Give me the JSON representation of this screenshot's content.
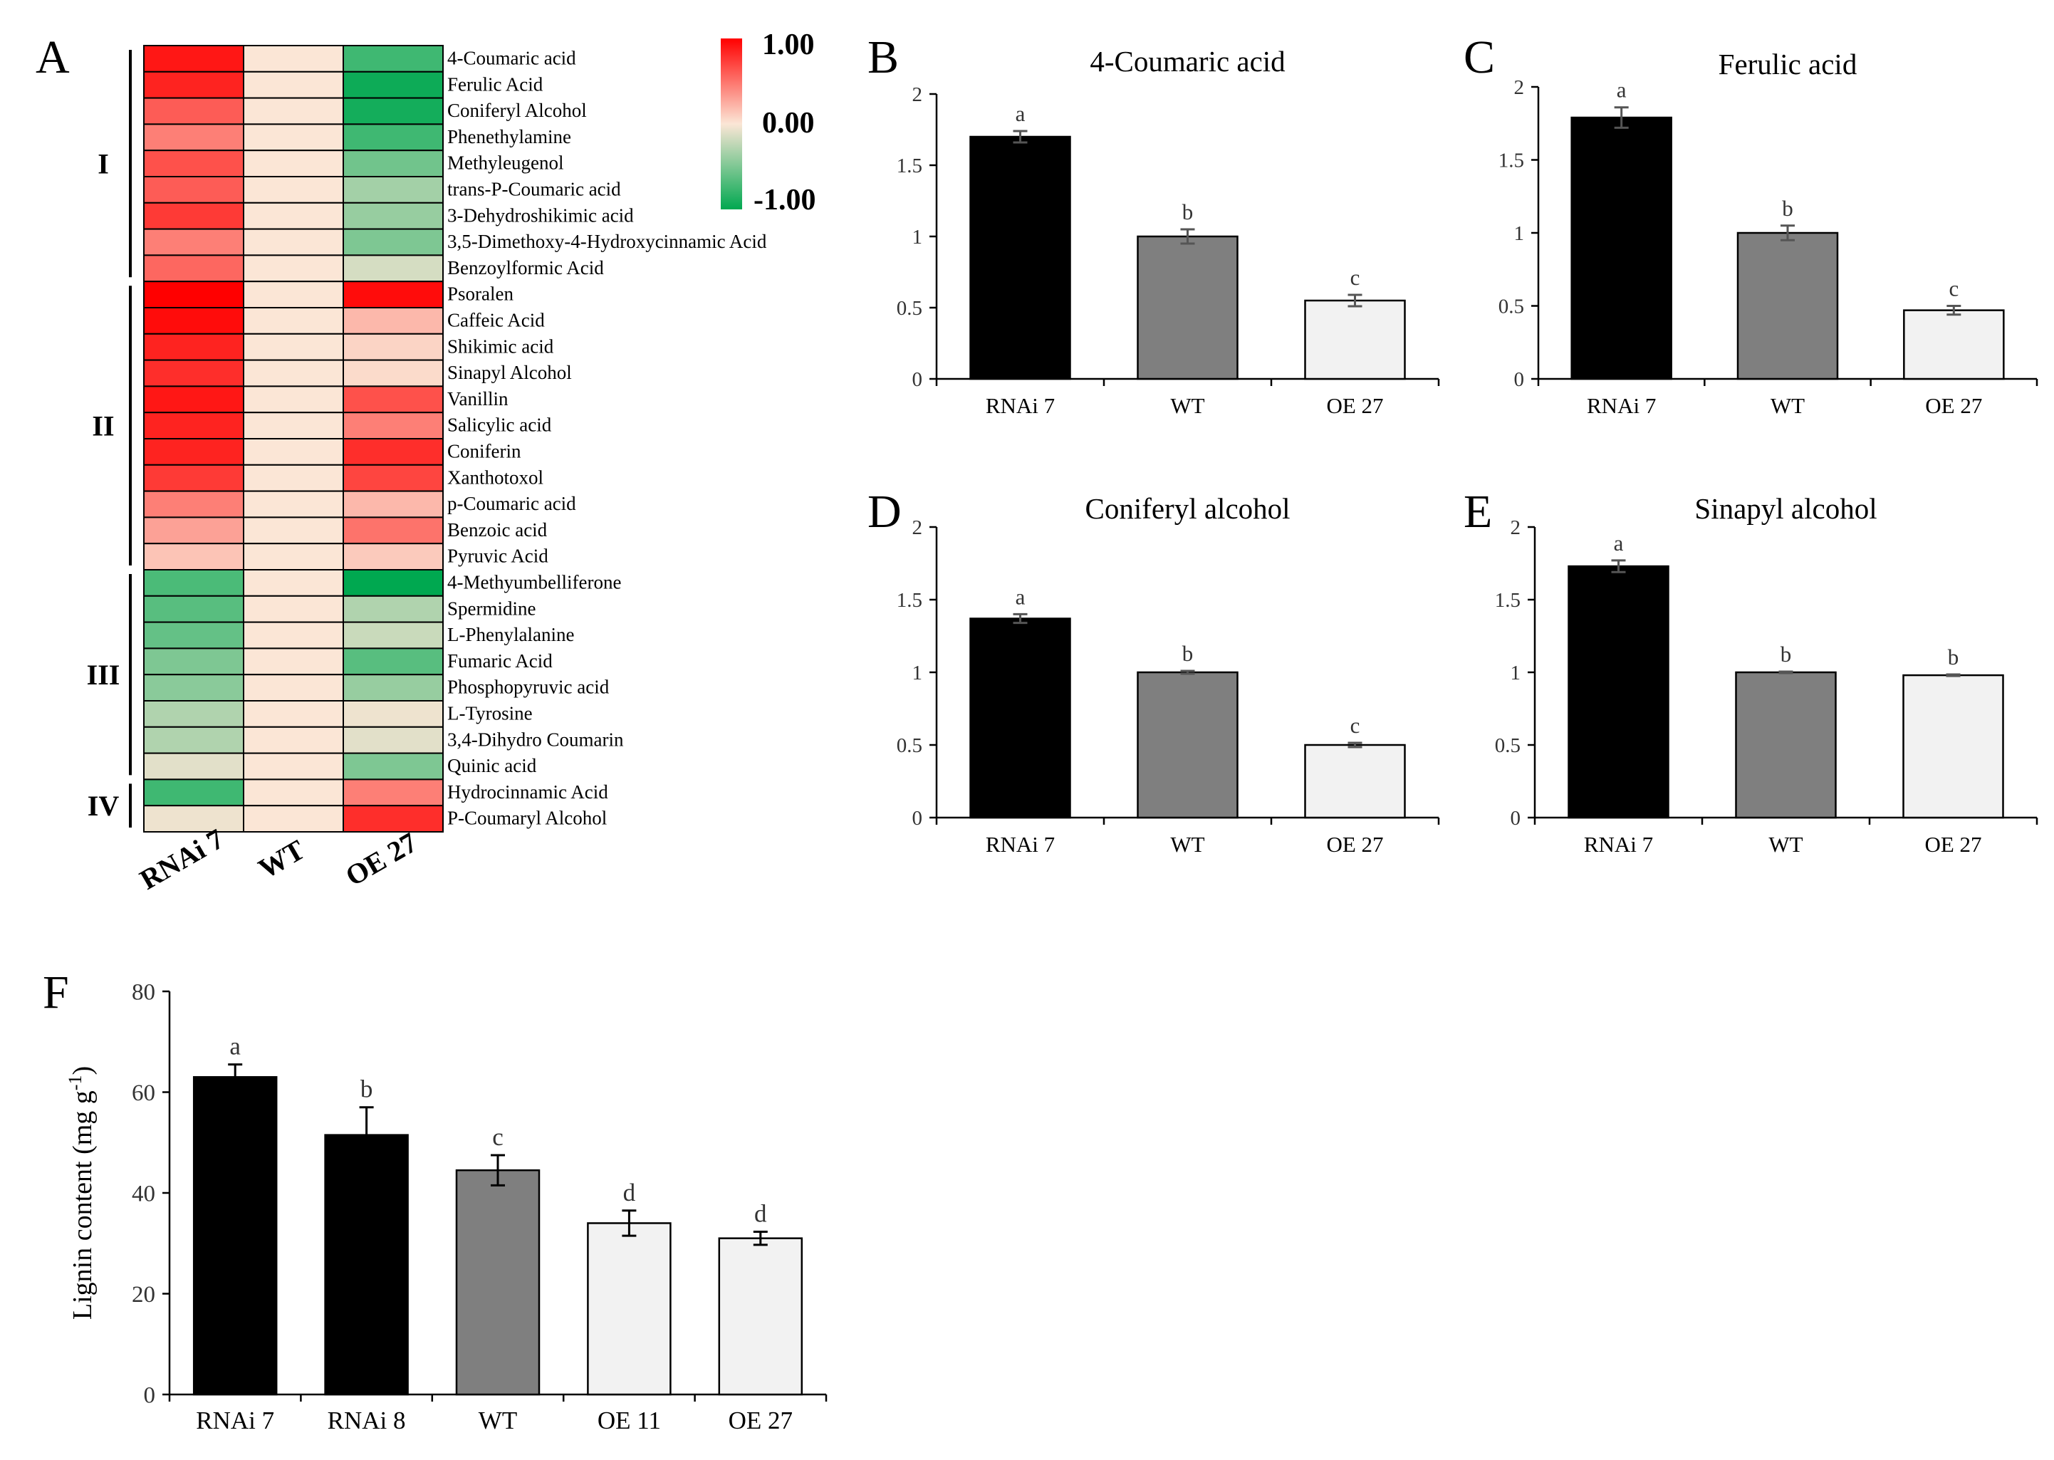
{
  "chart_data": [
    {
      "id": "A",
      "type": "heatmap",
      "panel_label": "A",
      "columns": [
        "RNAi 7",
        "WT",
        "OE 27"
      ],
      "color_scale": {
        "max": 1.0,
        "mid": 0.0,
        "min": -1.0,
        "max_label": "1.00",
        "mid_label": "0.00",
        "min_label": "-1.00",
        "max_color": "#ff0000",
        "mid_color": "#fbe6d6",
        "min_color": "#00a850"
      },
      "groups": [
        {
          "label": "I",
          "start": 0,
          "end": 8
        },
        {
          "label": "II",
          "start": 9,
          "end": 19
        },
        {
          "label": "III",
          "start": 20,
          "end": 27
        },
        {
          "label": "IV",
          "start": 28,
          "end": 29
        }
      ],
      "rows": [
        {
          "name": "4-Coumaric acid",
          "values": [
            0.9,
            0.0,
            -0.75
          ]
        },
        {
          "name": "Ferulic Acid",
          "values": [
            0.85,
            0.0,
            -0.95
          ]
        },
        {
          "name": "Coniferyl Alcohol",
          "values": [
            0.6,
            0.0,
            -0.92
          ]
        },
        {
          "name": "Phenethylamine",
          "values": [
            0.45,
            0.0,
            -0.75
          ]
        },
        {
          "name": "Methyleugenol",
          "values": [
            0.65,
            0.0,
            -0.55
          ]
        },
        {
          "name": "trans-P-Coumaric acid",
          "values": [
            0.6,
            0.0,
            -0.35
          ]
        },
        {
          "name": "3-Dehydroshikimic acid",
          "values": [
            0.75,
            0.0,
            -0.4
          ]
        },
        {
          "name": "3,5-Dimethoxy-4-Hydroxycinnamic Acid",
          "values": [
            0.45,
            0.0,
            -0.5
          ]
        },
        {
          "name": "Benzoylformic Acid",
          "values": [
            0.55,
            0.0,
            -0.15
          ]
        },
        {
          "name": "Psoralen",
          "values": [
            1.0,
            0.0,
            0.95
          ]
        },
        {
          "name": "Caffeic Acid",
          "values": [
            0.95,
            0.0,
            0.2
          ]
        },
        {
          "name": "Shikimic acid",
          "values": [
            0.85,
            0.0,
            0.08
          ]
        },
        {
          "name": "Sinapyl Alcohol",
          "values": [
            0.8,
            0.0,
            0.05
          ]
        },
        {
          "name": "Vanillin",
          "values": [
            0.9,
            0.0,
            0.65
          ]
        },
        {
          "name": "Salicylic acid",
          "values": [
            0.85,
            0.0,
            0.45
          ]
        },
        {
          "name": "Coniferin",
          "values": [
            0.85,
            0.0,
            0.8
          ]
        },
        {
          "name": "Xanthotoxol",
          "values": [
            0.75,
            0.0,
            0.7
          ]
        },
        {
          "name": "p-Coumaric acid",
          "values": [
            0.45,
            0.0,
            0.2
          ]
        },
        {
          "name": "Benzoic acid",
          "values": [
            0.3,
            0.0,
            0.5
          ]
        },
        {
          "name": "Pyruvic Acid",
          "values": [
            0.15,
            0.0,
            0.12
          ]
        },
        {
          "name": "4-Methyumbelliferone",
          "values": [
            -0.7,
            0.0,
            -1.0
          ]
        },
        {
          "name": "Spermidine",
          "values": [
            -0.65,
            0.0,
            -0.3
          ]
        },
        {
          "name": "L-Phenylalanine",
          "values": [
            -0.6,
            0.0,
            -0.2
          ]
        },
        {
          "name": "Fumaric Acid",
          "values": [
            -0.5,
            0.0,
            -0.65
          ]
        },
        {
          "name": "Phosphopyruvic acid",
          "values": [
            -0.45,
            0.0,
            -0.4
          ]
        },
        {
          "name": "L-Tyrosine",
          "values": [
            -0.3,
            0.0,
            -0.05
          ]
        },
        {
          "name": "3,4-Dihydro Coumarin",
          "values": [
            -0.3,
            0.0,
            -0.1
          ]
        },
        {
          "name": "Quinic acid",
          "values": [
            -0.1,
            0.0,
            -0.5
          ]
        },
        {
          "name": "Hydrocinnamic Acid",
          "values": [
            -0.75,
            0.0,
            0.45
          ]
        },
        {
          "name": "P-Coumaryl Alcohol",
          "values": [
            -0.05,
            0.0,
            0.8
          ]
        }
      ]
    },
    {
      "id": "B",
      "type": "bar",
      "panel_label": "B",
      "title": "4-Coumaric acid",
      "categories": [
        "RNAi 7",
        "WT",
        "OE 27"
      ],
      "values": [
        1.7,
        1.0,
        0.55
      ],
      "errors": [
        0.04,
        0.05,
        0.04
      ],
      "letters": [
        "a",
        "b",
        "c"
      ],
      "bar_colors": [
        "#000000",
        "#7f7f7f",
        "#f2f2f2"
      ],
      "ylim": [
        0,
        2
      ],
      "yticks": [
        0,
        0.5,
        1,
        1.5,
        2
      ],
      "ytick_labels": [
        "0",
        "0.5",
        "1",
        "1.5",
        "2"
      ],
      "ylabel": ""
    },
    {
      "id": "C",
      "type": "bar",
      "panel_label": "C",
      "title": "Ferulic acid",
      "categories": [
        "RNAi 7",
        "WT",
        "OE 27"
      ],
      "values": [
        1.79,
        1.0,
        0.47
      ],
      "errors": [
        0.07,
        0.05,
        0.03
      ],
      "letters": [
        "a",
        "b",
        "c"
      ],
      "bar_colors": [
        "#000000",
        "#7f7f7f",
        "#f2f2f2"
      ],
      "ylim": [
        0,
        2
      ],
      "yticks": [
        0,
        0.5,
        1,
        1.5,
        2
      ],
      "ytick_labels": [
        "0",
        "0.5",
        "1",
        "1.5",
        "2"
      ],
      "ylabel": ""
    },
    {
      "id": "D",
      "type": "bar",
      "panel_label": "D",
      "title": "Coniferyl alcohol",
      "categories": [
        "RNAi 7",
        "WT",
        "OE 27"
      ],
      "values": [
        1.37,
        1.0,
        0.5
      ],
      "errors": [
        0.03,
        0.01,
        0.015
      ],
      "letters": [
        "a",
        "b",
        "c"
      ],
      "bar_colors": [
        "#000000",
        "#7f7f7f",
        "#f2f2f2"
      ],
      "ylim": [
        0,
        2
      ],
      "yticks": [
        0,
        0.5,
        1,
        1.5,
        2
      ],
      "ytick_labels": [
        "0",
        "0.5",
        "1",
        "1.5",
        "2"
      ],
      "ylabel": ""
    },
    {
      "id": "E",
      "type": "bar",
      "panel_label": "E",
      "title": "Sinapyl alcohol",
      "categories": [
        "RNAi 7",
        "WT",
        "OE 27"
      ],
      "values": [
        1.73,
        1.0,
        0.98
      ],
      "errors": [
        0.04,
        0.005,
        0.005
      ],
      "letters": [
        "a",
        "b",
        "b"
      ],
      "bar_colors": [
        "#000000",
        "#7f7f7f",
        "#f2f2f2"
      ],
      "ylim": [
        0,
        2
      ],
      "yticks": [
        0,
        0.5,
        1,
        1.5,
        2
      ],
      "ytick_labels": [
        "0",
        "0.5",
        "1",
        "1.5",
        "2"
      ],
      "ylabel": ""
    },
    {
      "id": "F",
      "type": "bar",
      "panel_label": "F",
      "title": "",
      "categories": [
        "RNAi 7",
        "RNAi 8",
        "WT",
        "OE 11",
        "OE 27"
      ],
      "values": [
        63,
        51.5,
        44.5,
        34,
        31
      ],
      "errors": [
        2.5,
        5.5,
        3.0,
        2.5,
        1.3
      ],
      "letters": [
        "a",
        "b",
        "c",
        "d",
        "d"
      ],
      "bar_colors": [
        "#000000",
        "#000000",
        "#7f7f7f",
        "#f2f2f2",
        "#f2f2f2"
      ],
      "ylim": [
        0,
        80
      ],
      "yticks": [
        0,
        20,
        40,
        60,
        80
      ],
      "ytick_labels": [
        "0",
        "20",
        "40",
        "60",
        "80"
      ],
      "ylabel": "Lignin content (mg g",
      "ylabel_superscript": "-1",
      "ylabel_suffix": ")"
    }
  ]
}
